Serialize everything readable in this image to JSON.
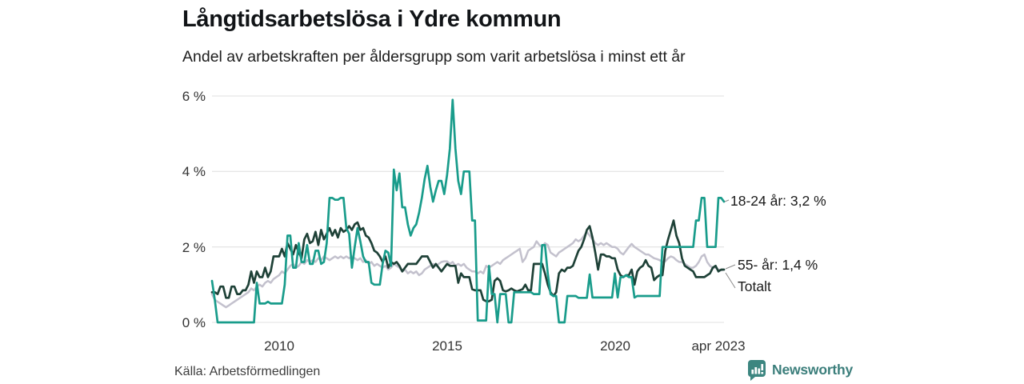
{
  "footer": {
    "brand": "Newsworthy"
  },
  "chart_data": {
    "type": "line",
    "title": "Långtidsarbetslösa i Ydre kommun",
    "subtitle": "Andel av arbetskraften per åldersgrupp som varit arbetslösa i minst ett år",
    "source": "Källa: Arbetsförmedlingen",
    "xlabel": "",
    "ylabel": "",
    "grid": "horizontal",
    "legend_position": "end-of-line-labels",
    "x_unit": "months",
    "x_start": 2008.0,
    "x_step": 0.0833333,
    "x_domain": [
      2008.0,
      2023.25
    ],
    "y_domain": [
      0,
      6
    ],
    "colors": {
      "grid": "#e6e6e6",
      "teal": "#199c8b",
      "dark_green": "#1e4137",
      "total_gray": "#c3c1cd",
      "brand_teal": "#3b7e7b"
    },
    "x_ticks": [
      {
        "value": 2010,
        "label": "2010"
      },
      {
        "value": 2015,
        "label": "2015"
      },
      {
        "value": 2020,
        "label": "2020"
      },
      {
        "value": 2023.25,
        "label": "apr 2023"
      }
    ],
    "y_ticks": [
      {
        "value": 0,
        "label": "0 %"
      },
      {
        "value": 2,
        "label": "2 %"
      },
      {
        "value": 4,
        "label": "4 %"
      },
      {
        "value": 6,
        "label": "6 %"
      }
    ],
    "series": [
      {
        "id": "series-18-24-ar",
        "name": "18-24 år",
        "end_label": "18-24 år: 3,2 %",
        "end_value": "3,2 %",
        "color": "#199c8b",
        "width": 2.7,
        "values": [
          1.1,
          0.6,
          0,
          0,
          0,
          0,
          0,
          0,
          0,
          0,
          0,
          0,
          0,
          0,
          0,
          0,
          1.05,
          0.5,
          0.5,
          0.5,
          0.55,
          0.5,
          0.5,
          0.5,
          0.5,
          0.5,
          1.0,
          2.3,
          2.3,
          1.45,
          1.45,
          2.1,
          1.6,
          1.6,
          2.05,
          1.55,
          1.55,
          1.9,
          1.9,
          1.55,
          1.6,
          2.1,
          3.3,
          3.3,
          3.25,
          3.25,
          3.3,
          3.3,
          2.5,
          2.35,
          1.45,
          2.0,
          2.5,
          2.15,
          1.75,
          1.6,
          1.6,
          1.05,
          1.0,
          1.0,
          1.0,
          1.55,
          1.9,
          1.85,
          1.5,
          4.05,
          3.5,
          3.95,
          3.05,
          3.05,
          2.6,
          2.3,
          2.5,
          2.6,
          2.9,
          3.3,
          3.8,
          4.15,
          3.6,
          3.2,
          3.5,
          3.75,
          3.75,
          3.4,
          3.9,
          4.6,
          5.9,
          4.6,
          3.75,
          3.4,
          4.0,
          4.0,
          4.0,
          2.7,
          2.7,
          0.05,
          0.05,
          0.05,
          0.05,
          1.5,
          0.75,
          0.75,
          0,
          0.75,
          0.75,
          0.75,
          0,
          0,
          0.8,
          0.8,
          0.8,
          0.8,
          0.8,
          0.8,
          0.8,
          0.75,
          0.75,
          0.75,
          2.05,
          2.05,
          1.3,
          0.75,
          0.7,
          0.7,
          0,
          0,
          0,
          0.7,
          0.7,
          0.7,
          0.7,
          0.65,
          0.65,
          0.65,
          0.65,
          1.27,
          0.66,
          0.66,
          0.66,
          0.66,
          0.66,
          0.66,
          0.66,
          0.66,
          1.3,
          0.66,
          1.2,
          1.2,
          1.25,
          1.2,
          1.2,
          0.66,
          0.7,
          0.7,
          0.7,
          0.7,
          0.7,
          0.7,
          0.7,
          0.7,
          0.7,
          2.0,
          2.0,
          2.0,
          2.0,
          2.0,
          2.0,
          2.0,
          2.0,
          2.0,
          2.0,
          2.0,
          2.0,
          2.7,
          2.7,
          3.3,
          3.3,
          2.0,
          2.0,
          2.0,
          2.0,
          3.3,
          3.3,
          3.2
        ]
      },
      {
        "id": "series-55-ar",
        "name": "55- år",
        "end_label": "55- år: 1,4 %",
        "end_value": "1,4 %",
        "color": "#1e4137",
        "width": 2.7,
        "values": [
          0.8,
          0.8,
          0.75,
          0.95,
          0.95,
          0.65,
          0.65,
          0.95,
          0.95,
          0.75,
          0.75,
          0.85,
          0.85,
          1.0,
          1.35,
          1.05,
          1.35,
          1.2,
          1.2,
          1.45,
          1.2,
          1.35,
          1.75,
          1.75,
          1.75,
          1.95,
          1.75,
          2.1,
          1.95,
          1.8,
          2.05,
          1.85,
          1.7,
          2.2,
          2.35,
          2.1,
          2.15,
          2.4,
          2.05,
          2.45,
          2.2,
          2.35,
          2.5,
          2.3,
          2.45,
          2.25,
          2.5,
          2.4,
          2.45,
          2.55,
          2.45,
          2.6,
          2.65,
          2.45,
          2.5,
          2.3,
          2.25,
          2.1,
          1.9,
          1.85,
          1.75,
          1.6,
          1.75,
          1.45,
          1.6,
          1.55,
          1.6,
          1.5,
          1.35,
          1.45,
          1.55,
          1.55,
          1.55,
          1.55,
          1.65,
          1.75,
          1.75,
          1.75,
          1.6,
          1.45,
          1.55,
          1.45,
          1.35,
          1.45,
          1.55,
          1.5,
          1.5,
          1.5,
          1.05,
          1.3,
          1.2,
          1.2,
          1.2,
          0.88,
          0.85,
          0.85,
          0.85,
          0.6,
          0.56,
          0.56,
          0.6,
          1.1,
          1.17,
          1.1,
          0.85,
          0.82,
          0.85,
          0.9,
          0.85,
          0.82,
          0.85,
          0.88,
          1.0,
          0.85,
          0.85,
          1.55,
          1.55,
          1.55,
          1.55,
          1.3,
          1.0,
          0.8,
          0.7,
          0.8,
          1.3,
          1.4,
          1.35,
          1.45,
          1.45,
          1.5,
          1.7,
          1.9,
          2.0,
          2.2,
          2.45,
          2.55,
          2.25,
          1.85,
          1.4,
          1.8,
          1.8,
          1.75,
          1.75,
          1.7,
          1.7,
          1.4,
          1.25,
          1.2,
          1.25,
          1.25,
          1.4,
          1.0,
          1.35,
          1.45,
          1.5,
          1.65,
          1.5,
          1.45,
          1.12,
          1.2,
          1.25,
          1.25,
          1.9,
          2.2,
          2.45,
          2.7,
          2.3,
          2.1,
          1.7,
          1.5,
          1.45,
          1.4,
          1.35,
          1.2,
          1.2,
          1.2,
          1.2,
          1.25,
          1.3,
          1.45,
          1.5,
          1.35,
          1.4,
          1.4
        ]
      },
      {
        "id": "series-totalt",
        "name": "Totalt",
        "end_label": "Totalt",
        "end_value": "1,4 %",
        "color": "#c3c1cd",
        "width": 2.5,
        "values": [
          0.75,
          0.6,
          0.55,
          0.5,
          0.45,
          0.4,
          0.45,
          0.5,
          0.55,
          0.6,
          0.65,
          0.7,
          0.75,
          0.8,
          0.9,
          0.85,
          0.95,
          1.0,
          0.95,
          1.05,
          1.1,
          1.05,
          1.15,
          1.2,
          1.25,
          1.35,
          1.3,
          1.4,
          1.5,
          1.55,
          1.45,
          1.5,
          1.6,
          1.55,
          1.65,
          1.6,
          1.65,
          1.6,
          1.7,
          1.65,
          1.75,
          1.7,
          1.65,
          1.7,
          1.75,
          1.7,
          1.75,
          1.7,
          1.75,
          1.7,
          1.75,
          1.7,
          1.65,
          1.7,
          1.6,
          1.65,
          1.55,
          1.6,
          1.5,
          1.55,
          1.5,
          1.45,
          1.5,
          1.4,
          1.45,
          1.55,
          1.5,
          1.45,
          1.35,
          1.4,
          1.3,
          1.35,
          1.3,
          1.35,
          1.25,
          1.3,
          1.4,
          1.45,
          1.5,
          1.55,
          1.5,
          1.55,
          1.6,
          1.62,
          1.62,
          1.55,
          1.6,
          1.5,
          1.55,
          1.5,
          1.55,
          1.45,
          1.4,
          1.35,
          1.35,
          1.3,
          1.35,
          1.3,
          1.5,
          1.45,
          1.5,
          1.55,
          1.6,
          1.55,
          1.65,
          1.7,
          1.75,
          1.8,
          1.85,
          1.9,
          1.95,
          1.6,
          1.7,
          1.9,
          1.95,
          2.0,
          2.15,
          2.05,
          2.0,
          2.1,
          2.05,
          1.85,
          1.8,
          1.75,
          1.85,
          1.9,
          1.95,
          2.0,
          2.05,
          2.1,
          2.2,
          2.15,
          2.2,
          2.3,
          2.4,
          2.3,
          2.2,
          2.1,
          2.05,
          2.1,
          2.05,
          2.1,
          2.05,
          2.0,
          2.0,
          1.95,
          1.85,
          1.8,
          1.9,
          2.0,
          2.08,
          2.0,
          1.95,
          1.9,
          1.85,
          1.8,
          1.8,
          1.75,
          1.7,
          1.68,
          1.65,
          1.6,
          1.62,
          1.7,
          1.75,
          1.72,
          1.65,
          1.6,
          1.6,
          1.55,
          1.5,
          1.45,
          1.45,
          1.5,
          1.6,
          1.75,
          1.8,
          1.6,
          1.5,
          1.45,
          1.45,
          1.4,
          1.38,
          1.4
        ]
      }
    ]
  }
}
